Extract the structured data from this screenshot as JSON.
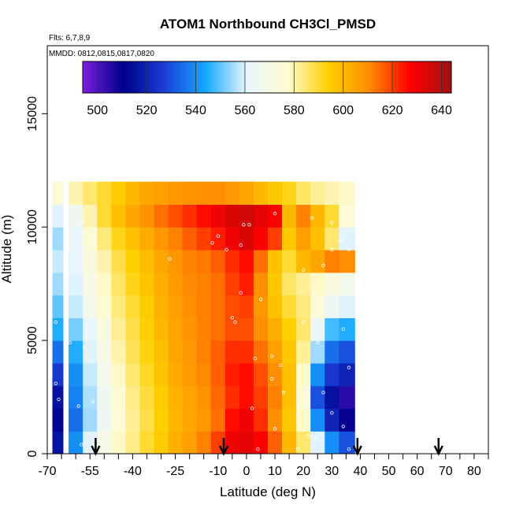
{
  "chart_data": {
    "type": "heatmap",
    "title": "ATOM1 Northbound CH3Cl_PMSD",
    "flights_note": "Flts: 6,7,8,9",
    "date_note": "MMDD: 0812,0815,0817,0820",
    "xlabel": "Latitude (deg N)",
    "ylabel": "Altitude (m)",
    "xlim": [
      -70,
      85
    ],
    "ylim": [
      0,
      18000
    ],
    "x_ticks": [
      {
        "value": -70,
        "label": "-70"
      },
      {
        "value": -55,
        "label": "-55"
      },
      {
        "value": -40,
        "label": "-40"
      },
      {
        "value": -25,
        "label": "-25"
      },
      {
        "value": -10,
        "label": "-10"
      },
      {
        "value": 0,
        "label": "0"
      },
      {
        "value": 10,
        "label": "10"
      },
      {
        "value": 20,
        "label": "20"
      },
      {
        "value": 30,
        "label": "30"
      },
      {
        "value": 40,
        "label": "40"
      },
      {
        "value": 50,
        "label": "50"
      },
      {
        "value": 60,
        "label": "60"
      },
      {
        "value": 70,
        "label": "70"
      },
      {
        "value": 80,
        "label": "80"
      }
    ],
    "x_minor_ticks": [
      -65,
      -60,
      -50,
      -45,
      -35,
      -30,
      -20,
      -15,
      -5,
      5,
      15,
      25,
      35,
      45,
      55,
      65,
      75,
      85
    ],
    "y_ticks": [
      {
        "value": 0,
        "label": "0"
      },
      {
        "value": 5000,
        "label": "5000"
      },
      {
        "value": 10000,
        "label": "10000"
      },
      {
        "value": 15000,
        "label": "15000"
      }
    ],
    "colorbar": {
      "min": 494,
      "max": 644,
      "ticks": [
        500,
        520,
        540,
        560,
        580,
        600,
        620,
        640
      ],
      "tick_labels": [
        "500",
        "520",
        "540",
        "560",
        "580",
        "600",
        "620",
        "640"
      ],
      "stops": [
        "#7a1fe0",
        "#00008b",
        "#1a3fd8",
        "#14a8ff",
        "#e8f6ff",
        "#fffbd0",
        "#ffd000",
        "#ff8c00",
        "#ff0000",
        "#a01010"
      ]
    },
    "arrow_latitudes": [
      -53,
      -8,
      39,
      67.5
    ],
    "lat_grid": [
      -67,
      -60,
      -55,
      -50,
      -45,
      -40,
      -35,
      -30,
      -25,
      -20,
      -15,
      -10,
      -5,
      0,
      5,
      10,
      15,
      20,
      25,
      30,
      35
    ],
    "alt_grid": [
      500,
      1500,
      2500,
      3500,
      4500,
      5500,
      6500,
      7500,
      8500,
      9500,
      10500,
      11500
    ],
    "values": [
      [
        516,
        540,
        560,
        570,
        578,
        583,
        590,
        595,
        602,
        606,
        612,
        620,
        630,
        632,
        628,
        616,
        600,
        585,
        560,
        540,
        530
      ],
      [
        512,
        535,
        555,
        565,
        575,
        582,
        588,
        594,
        600,
        604,
        608,
        614,
        626,
        630,
        622,
        610,
        596,
        578,
        540,
        520,
        510
      ],
      [
        515,
        538,
        556,
        566,
        576,
        583,
        589,
        595,
        601,
        605,
        609,
        615,
        622,
        626,
        620,
        612,
        598,
        575,
        530,
        515,
        505
      ],
      [
        525,
        540,
        558,
        568,
        578,
        585,
        591,
        597,
        603,
        607,
        611,
        616,
        624,
        626,
        618,
        610,
        598,
        578,
        540,
        525,
        520
      ],
      [
        535,
        545,
        560,
        570,
        580,
        587,
        593,
        598,
        604,
        608,
        612,
        616,
        622,
        622,
        614,
        606,
        596,
        582,
        555,
        535,
        530
      ],
      [
        545,
        552,
        562,
        572,
        582,
        588,
        594,
        600,
        605,
        609,
        612,
        614,
        618,
        618,
        610,
        602,
        594,
        585,
        565,
        548,
        545
      ],
      [
        550,
        558,
        568,
        576,
        584,
        590,
        595,
        601,
        606,
        610,
        612,
        614,
        618,
        620,
        608,
        598,
        590,
        584,
        575,
        565,
        560
      ],
      [
        555,
        560,
        570,
        578,
        586,
        592,
        597,
        602,
        607,
        611,
        612,
        614,
        620,
        624,
        610,
        596,
        586,
        582,
        578,
        572,
        568
      ],
      [
        558,
        562,
        572,
        580,
        588,
        594,
        599,
        604,
        608,
        612,
        613,
        616,
        622,
        626,
        614,
        598,
        590,
        600,
        604,
        612,
        610
      ],
      [
        555,
        562,
        575,
        584,
        592,
        598,
        603,
        608,
        612,
        616,
        620,
        624,
        630,
        634,
        628,
        620,
        596,
        606,
        598,
        585,
        560
      ],
      [
        560,
        566,
        580,
        590,
        598,
        604,
        609,
        614,
        618,
        622,
        626,
        630,
        634,
        636,
        632,
        628,
        600,
        612,
        600,
        590,
        575
      ],
      [
        575,
        580,
        585,
        590,
        595,
        600,
        604,
        606,
        608,
        609,
        610,
        610,
        608,
        605,
        600,
        596,
        592,
        586,
        582,
        580,
        578
      ]
    ],
    "sample_points": [
      [
        -57.5,
        10200
      ],
      [
        -67,
        5800
      ],
      [
        -62,
        4900
      ],
      [
        -57,
        4700
      ],
      [
        -67,
        3100
      ],
      [
        -66,
        2400
      ],
      [
        -59,
        2100
      ],
      [
        -54,
        2300
      ],
      [
        -58,
        400
      ],
      [
        -27,
        8600
      ],
      [
        -7,
        9000
      ],
      [
        -1,
        10100
      ],
      [
        1,
        10100
      ],
      [
        -2,
        9200
      ],
      [
        -10,
        9600
      ],
      [
        -12,
        9300
      ],
      [
        -2,
        7100
      ],
      [
        -5,
        6000
      ],
      [
        -4,
        5800
      ],
      [
        5,
        6800
      ],
      [
        3,
        4200
      ],
      [
        9,
        4300
      ],
      [
        12,
        3900
      ],
      [
        9,
        3300
      ],
      [
        13,
        2700
      ],
      [
        2,
        2000
      ],
      [
        10,
        1100
      ],
      [
        18,
        1700
      ],
      [
        20,
        5800
      ],
      [
        25,
        4900
      ],
      [
        27,
        2700
      ],
      [
        22,
        800
      ],
      [
        24,
        700
      ],
      [
        30,
        1800
      ],
      [
        34,
        1200
      ],
      [
        36,
        200
      ],
      [
        18,
        200
      ],
      [
        4,
        200
      ],
      [
        10,
        10600
      ],
      [
        20,
        8100
      ],
      [
        24,
        7200
      ],
      [
        27,
        8300
      ],
      [
        30,
        9000
      ],
      [
        33,
        9400
      ],
      [
        36,
        9000
      ],
      [
        23,
        10400
      ],
      [
        30,
        10200
      ],
      [
        34,
        5500
      ],
      [
        36,
        3800
      ]
    ]
  }
}
